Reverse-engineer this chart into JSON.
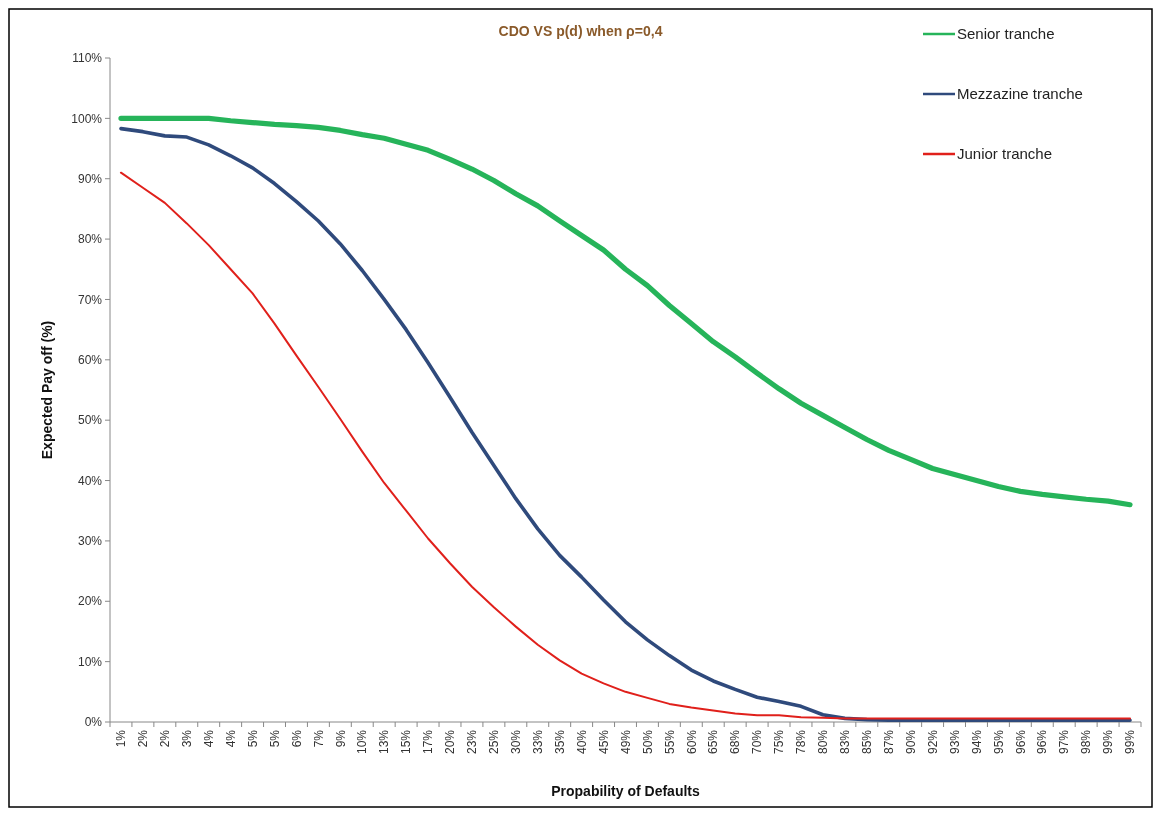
{
  "chart_data": {
    "type": "line",
    "title": "CDO VS p(d) when ρ=0,4",
    "xlabel": "Propability of Defaults",
    "ylabel": "Expected Pay off  (%)",
    "categories": [
      "1%",
      "2%",
      "2%",
      "3%",
      "4%",
      "4%",
      "5%",
      "5%",
      "6%",
      "7%",
      "9%",
      "10%",
      "13%",
      "15%",
      "17%",
      "20%",
      "23%",
      "25%",
      "30%",
      "33%",
      "35%",
      "40%",
      "45%",
      "49%",
      "50%",
      "55%",
      "60%",
      "65%",
      "68%",
      "70%",
      "75%",
      "78%",
      "80%",
      "83%",
      "85%",
      "87%",
      "90%",
      "92%",
      "93%",
      "94%",
      "95%",
      "96%",
      "96%",
      "97%",
      "98%",
      "99%",
      "99%"
    ],
    "series": [
      {
        "name": "Senior tranche",
        "color": "#26b45a",
        "values": [
          100,
          100,
          100,
          100,
          100,
          99.6,
          99.3,
          99,
          98.8,
          98.5,
          98,
          97.3,
          96.7,
          95.7,
          94.7,
          93.2,
          91.6,
          89.7,
          87.5,
          85.5,
          83,
          80.6,
          78.2,
          75,
          72.3,
          69,
          66,
          63,
          60.5,
          57.8,
          55.2,
          52.8,
          50.8,
          48.8,
          46.8,
          45,
          43.5,
          42,
          41,
          40,
          39,
          38.2,
          37.7,
          37.3,
          36.9,
          36.6,
          36
        ]
      },
      {
        "name": "Mezzazine tranche",
        "color": "#2f4a7c",
        "values": [
          98.3,
          97.8,
          97.1,
          96.9,
          95.6,
          93.8,
          91.8,
          89.2,
          86.2,
          83,
          79.2,
          74.8,
          70,
          65,
          59.5,
          53.8,
          48,
          42.5,
          37,
          32,
          27.6,
          24,
          20.2,
          16.6,
          13.6,
          11,
          8.6,
          6.8,
          5.4,
          4.1,
          3.4,
          2.6,
          1.2,
          0.6,
          0.4,
          0.3,
          0.3,
          0.3,
          0.3,
          0.3,
          0.3,
          0.3,
          0.3,
          0.3,
          0.3,
          0.3,
          0.3
        ]
      },
      {
        "name": "Junior tranche",
        "color": "#e0201b",
        "values": [
          91,
          88.5,
          86,
          82.6,
          79,
          75,
          71,
          66,
          60.7,
          55.5,
          50.2,
          44.8,
          39.6,
          35,
          30.4,
          26.3,
          22.4,
          19,
          15.8,
          12.8,
          10.2,
          8,
          6.4,
          5,
          4,
          3,
          2.4,
          1.9,
          1.4,
          1.1,
          1.1,
          0.8,
          0.7,
          0.6,
          0.6,
          0.6,
          0.6,
          0.6,
          0.6,
          0.6,
          0.6,
          0.6,
          0.6,
          0.6,
          0.6,
          0.6,
          0.6
        ]
      }
    ],
    "ylim": [
      0,
      110
    ],
    "yticks": [
      {
        "value": 0,
        "label": "0%"
      },
      {
        "value": 10,
        "label": "10%"
      },
      {
        "value": 20,
        "label": "20%"
      },
      {
        "value": 30,
        "label": "30%"
      },
      {
        "value": 40,
        "label": "40%"
      },
      {
        "value": 50,
        "label": "50%"
      },
      {
        "value": 60,
        "label": "60%"
      },
      {
        "value": 70,
        "label": "70%"
      },
      {
        "value": 80,
        "label": "80%"
      },
      {
        "value": 90,
        "label": "90%"
      },
      {
        "value": 100,
        "label": "100%"
      },
      {
        "value": 110,
        "label": "110%"
      }
    ],
    "grid": false,
    "legend": "top right",
    "marker": "none",
    "line_style": "solid"
  }
}
